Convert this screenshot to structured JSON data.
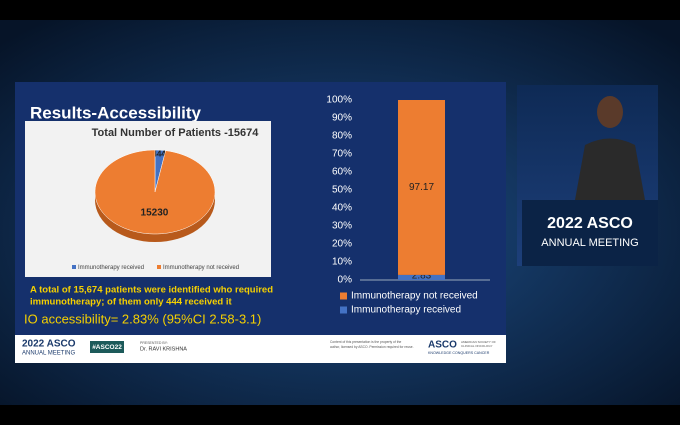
{
  "chart_data": [
    {
      "type": "pie",
      "title": "Total Number of Patients  -15674",
      "categories": [
        "Immunotherapy received",
        "Immunotherapy not received"
      ],
      "values": [
        444,
        15230
      ],
      "colors": [
        "#4472c4",
        "#ed7d31"
      ]
    },
    {
      "type": "stacked-bar",
      "series": [
        {
          "name": "Immunotherapy received",
          "color": "#4472c4",
          "values": [
            2.83
          ]
        },
        {
          "name": "Immunotherapy not received",
          "color": "#ed7d31",
          "values": [
            97.17
          ]
        }
      ],
      "ylim": [
        0,
        100
      ],
      "yticks": [
        {
          "value": 0,
          "label": "0%"
        },
        {
          "value": 10,
          "label": "10%"
        },
        {
          "value": 20,
          "label": "20%"
        },
        {
          "value": 30,
          "label": "30%"
        },
        {
          "value": 40,
          "label": "40%"
        },
        {
          "value": 50,
          "label": "50%"
        },
        {
          "value": 60,
          "label": "60%"
        },
        {
          "value": 70,
          "label": "70%"
        },
        {
          "value": 80,
          "label": "80%"
        },
        {
          "value": 90,
          "label": "90%"
        },
        {
          "value": 100,
          "label": "100%"
        }
      ],
      "grid": false
    }
  ],
  "slide": {
    "title": "Results-Accessibility",
    "summary": [
      "A total of 15,674 patients were identified who required",
      "immunotherapy; of them only 444 received it"
    ],
    "accessibility": "IO accessibility=  2.83% (95%CI 2.58-3.1)",
    "footer": {
      "logo_year": "2022 ASCO",
      "logo_sub": "ANNUAL MEETING",
      "hashtag": "#ASCO22",
      "presented_by": "PRESENTED BY:",
      "presenter": "Dr. RAVI KRISHNA",
      "notice": [
        "Content of this presentation is the property of the",
        "author, licensed by ASCO. Permission required for reuse."
      ],
      "asco": "ASCO",
      "asco_name": [
        "AMERICAN SOCIETY OF",
        "CLINICAL ONCOLOGY"
      ],
      "tagline": "KNOWLEDGE CONQUERS CANCER"
    }
  },
  "video": {
    "year_brand": "2022 ASCO",
    "meeting": "ANNUAL MEETING"
  }
}
